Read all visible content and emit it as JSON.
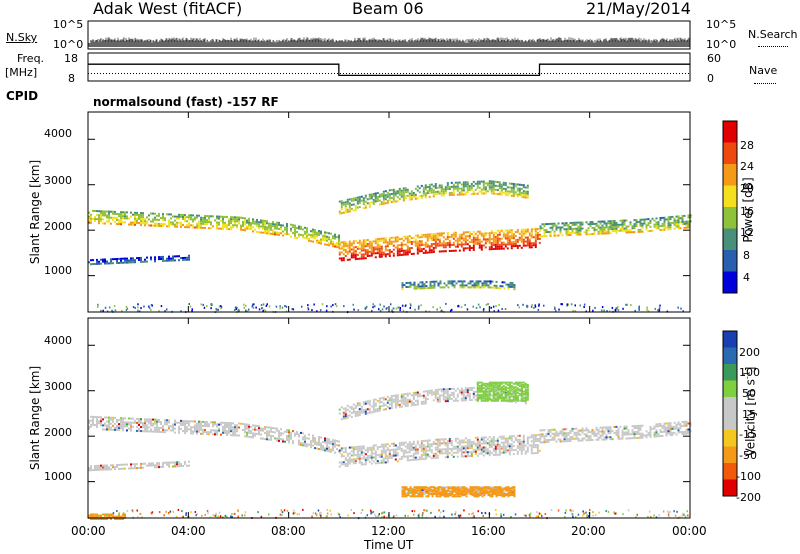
{
  "header": {
    "station": "Adak West (fitACF)",
    "beam": "Beam 06",
    "date": "21/May/2014"
  },
  "top_panels": {
    "nsky_label": "N.Sky",
    "nsearch_label": "N.Search",
    "freq_label_line1": "Freq.",
    "freq_label_line2": "[MHz]",
    "nave_label": "Nave",
    "cpid_label": "CPID",
    "cpid_text": "normalsound (fast) -157 RF",
    "noise_ticks": [
      "10^5",
      "10^0"
    ],
    "freq_ticks": [
      "18",
      "8"
    ],
    "nave_ticks": [
      "60",
      "0"
    ]
  },
  "colors": {
    "power_scale": [
      "#0000dd",
      "#2a5fb0",
      "#4a8f7a",
      "#8fc23a",
      "#f5e020",
      "#f59a18",
      "#ee4a10",
      "#e00000"
    ],
    "velocity_scale": [
      "#e00000",
      "#f05a0a",
      "#f59a18",
      "#f5c820",
      "#c8c8c8",
      "#c8c8c8",
      "#7ed040",
      "#3a9a5a",
      "#2a6ab0",
      "#1a40b0"
    ]
  },
  "chart_data": [
    {
      "type": "line",
      "name": "frequency-and-nave",
      "ylabel": "Freq. [MHz]",
      "x_hours": [
        0,
        10,
        10,
        18,
        18,
        24
      ],
      "freq_mhz": [
        14,
        14,
        10,
        10,
        14,
        14
      ],
      "nave": [
        16,
        16,
        16,
        16,
        16,
        16
      ],
      "freq_ylim": [
        8,
        18
      ],
      "nave_ylim": [
        0,
        60
      ]
    },
    {
      "type": "heatmap",
      "name": "power",
      "xlabel": "Time UT",
      "ylabel": "Slant Range [km]",
      "xlim_hours": [
        0,
        24
      ],
      "ylim_km": [
        200,
        4600
      ],
      "xticks": [
        "00:00",
        "04:00",
        "08:00",
        "12:00",
        "16:00",
        "20:00",
        "00:00"
      ],
      "yticks": [
        1000,
        2000,
        3000,
        4000
      ],
      "colorbar_label": "Power [dB]",
      "colorbar_ticks": [
        4,
        8,
        12,
        16,
        20,
        24,
        28
      ],
      "colorbar_range": [
        0,
        32
      ],
      "bands_km_vs_hour": [
        {
          "hours": [
            0,
            2,
            4,
            6,
            8,
            10
          ],
          "center_km": [
            2300,
            2250,
            2200,
            2150,
            2000,
            1750
          ],
          "width_km": 300,
          "power_db": 16
        },
        {
          "hours": [
            10,
            12,
            14,
            16,
            18
          ],
          "center_km": [
            1550,
            1650,
            1750,
            1800,
            1850
          ],
          "width_km": 400,
          "power_db": 24
        },
        {
          "hours": [
            10,
            12,
            14,
            16,
            17.5
          ],
          "center_km": [
            2500,
            2750,
            2900,
            2950,
            2850
          ],
          "width_km": 300,
          "power_db": 14
        },
        {
          "hours": [
            18,
            20,
            22,
            24
          ],
          "center_km": [
            2000,
            2050,
            2100,
            2200
          ],
          "width_km": 300,
          "power_db": 14
        },
        {
          "hours": [
            0,
            2,
            4
          ],
          "center_km": [
            1300,
            1350,
            1400
          ],
          "width_km": 120,
          "power_db": 6
        },
        {
          "hours": [
            12.5,
            14,
            16,
            17
          ],
          "center_km": [
            780,
            820,
            820,
            780
          ],
          "width_km": 150,
          "power_db": 10
        }
      ]
    },
    {
      "type": "heatmap",
      "name": "velocity",
      "xlabel": "Time UT",
      "ylabel": "Slant Range [km]",
      "xlim_hours": [
        0,
        24
      ],
      "ylim_km": [
        200,
        4600
      ],
      "xticks": [
        "00:00",
        "04:00",
        "08:00",
        "12:00",
        "16:00",
        "20:00",
        "00:00"
      ],
      "yticks": [
        1000,
        2000,
        3000,
        4000
      ],
      "colorbar_label": "Velocity [m s^-1]",
      "colorbar_ticks": [
        "200",
        "100",
        "50",
        "15",
        "-15",
        "-50",
        "-100",
        "-200"
      ],
      "colorbar_range": [
        -250,
        250
      ],
      "features": [
        {
          "hours": [
            12.5,
            17
          ],
          "range_km": [
            700,
            900
          ],
          "velocity": "-50"
        },
        {
          "hours": [
            15.5,
            17.5
          ],
          "range_km": [
            2800,
            3200
          ],
          "velocity": "50"
        },
        {
          "hours": [
            0,
            1.5
          ],
          "range_km": [
            200,
            300
          ],
          "velocity": "-50"
        }
      ]
    }
  ]
}
